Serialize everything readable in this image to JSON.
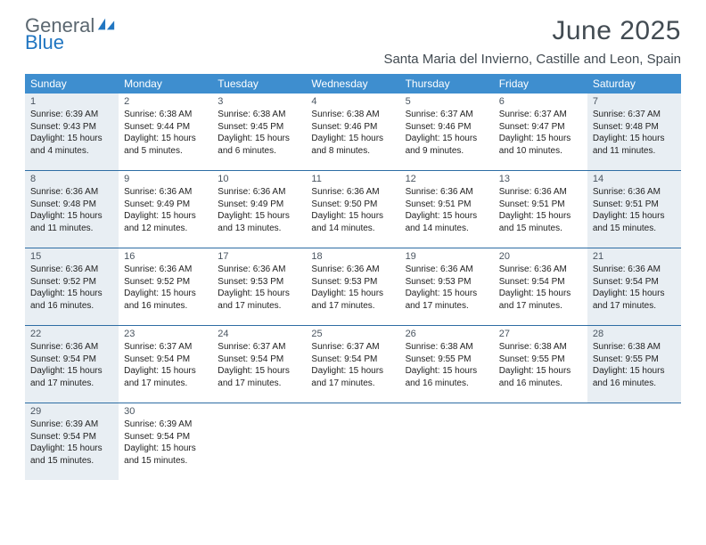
{
  "branding": {
    "word1": "General",
    "word2": "Blue",
    "word1_color": "#5b6770",
    "word2_color": "#2176c1",
    "icon_color": "#2176c1"
  },
  "title": "June 2025",
  "location": "Santa Maria del Invierno, Castille and Leon, Spain",
  "colors": {
    "header_bg": "#3e8ecf",
    "header_text": "#ffffff",
    "row_divider": "#2e6da4",
    "shade_bg": "#e8eef3",
    "title_color": "#424b52"
  },
  "daysOfWeek": [
    "Sunday",
    "Monday",
    "Tuesday",
    "Wednesday",
    "Thursday",
    "Friday",
    "Saturday"
  ],
  "weeks": [
    [
      {
        "n": 1,
        "shaded": true,
        "sunrise": "6:39 AM",
        "sunset": "9:43 PM",
        "daylight": "15 hours and 4 minutes."
      },
      {
        "n": 2,
        "shaded": false,
        "sunrise": "6:38 AM",
        "sunset": "9:44 PM",
        "daylight": "15 hours and 5 minutes."
      },
      {
        "n": 3,
        "shaded": false,
        "sunrise": "6:38 AM",
        "sunset": "9:45 PM",
        "daylight": "15 hours and 6 minutes."
      },
      {
        "n": 4,
        "shaded": false,
        "sunrise": "6:38 AM",
        "sunset": "9:46 PM",
        "daylight": "15 hours and 8 minutes."
      },
      {
        "n": 5,
        "shaded": false,
        "sunrise": "6:37 AM",
        "sunset": "9:46 PM",
        "daylight": "15 hours and 9 minutes."
      },
      {
        "n": 6,
        "shaded": false,
        "sunrise": "6:37 AM",
        "sunset": "9:47 PM",
        "daylight": "15 hours and 10 minutes."
      },
      {
        "n": 7,
        "shaded": true,
        "sunrise": "6:37 AM",
        "sunset": "9:48 PM",
        "daylight": "15 hours and 11 minutes."
      }
    ],
    [
      {
        "n": 8,
        "shaded": true,
        "sunrise": "6:36 AM",
        "sunset": "9:48 PM",
        "daylight": "15 hours and 11 minutes."
      },
      {
        "n": 9,
        "shaded": false,
        "sunrise": "6:36 AM",
        "sunset": "9:49 PM",
        "daylight": "15 hours and 12 minutes."
      },
      {
        "n": 10,
        "shaded": false,
        "sunrise": "6:36 AM",
        "sunset": "9:49 PM",
        "daylight": "15 hours and 13 minutes."
      },
      {
        "n": 11,
        "shaded": false,
        "sunrise": "6:36 AM",
        "sunset": "9:50 PM",
        "daylight": "15 hours and 14 minutes."
      },
      {
        "n": 12,
        "shaded": false,
        "sunrise": "6:36 AM",
        "sunset": "9:51 PM",
        "daylight": "15 hours and 14 minutes."
      },
      {
        "n": 13,
        "shaded": false,
        "sunrise": "6:36 AM",
        "sunset": "9:51 PM",
        "daylight": "15 hours and 15 minutes."
      },
      {
        "n": 14,
        "shaded": true,
        "sunrise": "6:36 AM",
        "sunset": "9:51 PM",
        "daylight": "15 hours and 15 minutes."
      }
    ],
    [
      {
        "n": 15,
        "shaded": true,
        "sunrise": "6:36 AM",
        "sunset": "9:52 PM",
        "daylight": "15 hours and 16 minutes."
      },
      {
        "n": 16,
        "shaded": false,
        "sunrise": "6:36 AM",
        "sunset": "9:52 PM",
        "daylight": "15 hours and 16 minutes."
      },
      {
        "n": 17,
        "shaded": false,
        "sunrise": "6:36 AM",
        "sunset": "9:53 PM",
        "daylight": "15 hours and 17 minutes."
      },
      {
        "n": 18,
        "shaded": false,
        "sunrise": "6:36 AM",
        "sunset": "9:53 PM",
        "daylight": "15 hours and 17 minutes."
      },
      {
        "n": 19,
        "shaded": false,
        "sunrise": "6:36 AM",
        "sunset": "9:53 PM",
        "daylight": "15 hours and 17 minutes."
      },
      {
        "n": 20,
        "shaded": false,
        "sunrise": "6:36 AM",
        "sunset": "9:54 PM",
        "daylight": "15 hours and 17 minutes."
      },
      {
        "n": 21,
        "shaded": true,
        "sunrise": "6:36 AM",
        "sunset": "9:54 PM",
        "daylight": "15 hours and 17 minutes."
      }
    ],
    [
      {
        "n": 22,
        "shaded": true,
        "sunrise": "6:36 AM",
        "sunset": "9:54 PM",
        "daylight": "15 hours and 17 minutes."
      },
      {
        "n": 23,
        "shaded": false,
        "sunrise": "6:37 AM",
        "sunset": "9:54 PM",
        "daylight": "15 hours and 17 minutes."
      },
      {
        "n": 24,
        "shaded": false,
        "sunrise": "6:37 AM",
        "sunset": "9:54 PM",
        "daylight": "15 hours and 17 minutes."
      },
      {
        "n": 25,
        "shaded": false,
        "sunrise": "6:37 AM",
        "sunset": "9:54 PM",
        "daylight": "15 hours and 17 minutes."
      },
      {
        "n": 26,
        "shaded": false,
        "sunrise": "6:38 AM",
        "sunset": "9:55 PM",
        "daylight": "15 hours and 16 minutes."
      },
      {
        "n": 27,
        "shaded": false,
        "sunrise": "6:38 AM",
        "sunset": "9:55 PM",
        "daylight": "15 hours and 16 minutes."
      },
      {
        "n": 28,
        "shaded": true,
        "sunrise": "6:38 AM",
        "sunset": "9:55 PM",
        "daylight": "15 hours and 16 minutes."
      }
    ],
    [
      {
        "n": 29,
        "shaded": true,
        "sunrise": "6:39 AM",
        "sunset": "9:54 PM",
        "daylight": "15 hours and 15 minutes."
      },
      {
        "n": 30,
        "shaded": false,
        "sunrise": "6:39 AM",
        "sunset": "9:54 PM",
        "daylight": "15 hours and 15 minutes."
      },
      null,
      null,
      null,
      null,
      null
    ]
  ],
  "labels": {
    "sunrise": "Sunrise:",
    "sunset": "Sunset:",
    "daylight": "Daylight:"
  }
}
